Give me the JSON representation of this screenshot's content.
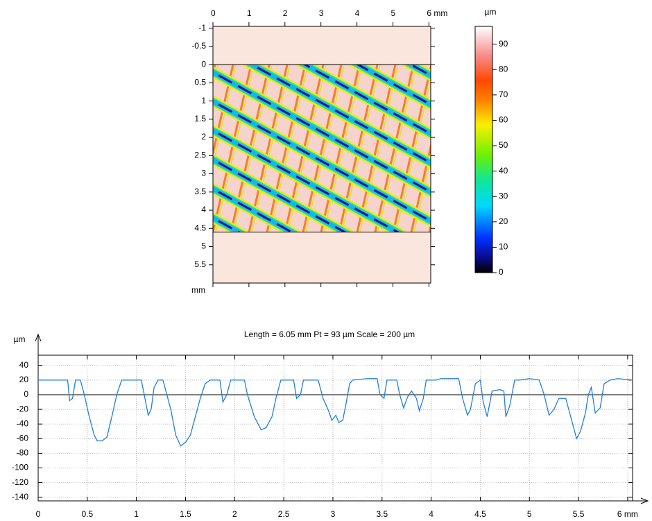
{
  "chart_data": [
    {
      "type": "heatmap",
      "xlim": [
        0,
        6.05
      ],
      "ylim": [
        -1.05,
        6.0
      ],
      "xticks": [
        0,
        1,
        2,
        3,
        4,
        5,
        {
          "value": 6,
          "label": "6 mm"
        }
      ],
      "yticks": [
        -1,
        -0.5,
        0,
        0.5,
        1,
        1.5,
        2,
        2.5,
        3,
        3.5,
        4,
        4.5,
        5,
        5.5
      ],
      "ylabel": "mm",
      "scan_ylim": [
        0,
        4.6
      ],
      "colorbar_label": "µm",
      "zlim": [
        0,
        97
      ],
      "zticks": [
        0,
        10,
        20,
        30,
        40,
        50,
        60,
        70,
        80,
        90
      ]
    },
    {
      "type": "line",
      "title": "Length = 6.05 mm  Pt = 93 µm  Scale = 200 µm",
      "ylabel": "µm",
      "xlim": [
        0,
        6.05
      ],
      "ylim": [
        -145,
        54
      ],
      "xticks": [
        0,
        0.5,
        1,
        1.5,
        2,
        2.5,
        3,
        3.5,
        4,
        4.5,
        5,
        5.5,
        {
          "value": 6,
          "label": "6 mm"
        }
      ],
      "yticks": [
        -140,
        -120,
        -100,
        -80,
        -60,
        -40,
        -20,
        0,
        20,
        40
      ],
      "grid": true,
      "color": "#1f7fd6",
      "x": [
        0,
        0.3,
        0.32,
        0.35,
        0.38,
        0.43,
        0.47,
        0.52,
        0.57,
        0.6,
        0.65,
        0.7,
        0.75,
        0.8,
        0.85,
        1.05,
        1.08,
        1.12,
        1.15,
        1.18,
        1.22,
        1.27,
        1.3,
        1.35,
        1.4,
        1.45,
        1.5,
        1.55,
        1.6,
        1.65,
        1.7,
        1.75,
        1.85,
        1.88,
        1.92,
        1.96,
        2.1,
        2.13,
        2.2,
        2.27,
        2.32,
        2.38,
        2.42,
        2.47,
        2.6,
        2.63,
        2.67,
        2.7,
        2.85,
        2.9,
        2.95,
        2.99,
        3.03,
        3.06,
        3.1,
        3.13,
        3.17,
        3.2,
        3.35,
        3.45,
        3.48,
        3.52,
        3.55,
        3.65,
        3.68,
        3.72,
        3.76,
        3.8,
        3.85,
        3.88,
        3.92,
        3.95,
        4.05,
        4.1,
        4.28,
        4.32,
        4.37,
        4.4,
        4.45,
        4.5,
        4.53,
        4.57,
        4.62,
        4.7,
        4.74,
        4.76,
        4.8,
        4.85,
        4.9,
        5.0,
        5.1,
        5.15,
        5.2,
        5.25,
        5.3,
        5.37,
        5.42,
        5.48,
        5.52,
        5.57,
        5.6,
        5.63,
        5.67,
        5.72,
        5.76,
        5.82,
        5.9,
        6.05
      ],
      "values": [
        20,
        20,
        -8,
        -5,
        20,
        20,
        0,
        -30,
        -55,
        -63,
        -63,
        -58,
        -30,
        0,
        20,
        20,
        0,
        -28,
        -20,
        10,
        20,
        20,
        5,
        -20,
        -55,
        -70,
        -65,
        -55,
        -30,
        -5,
        15,
        20,
        20,
        -10,
        0,
        20,
        20,
        0,
        -30,
        -48,
        -45,
        -30,
        -5,
        20,
        20,
        -5,
        0,
        20,
        20,
        -5,
        -20,
        -35,
        -28,
        -38,
        -35,
        -15,
        15,
        20,
        22,
        22,
        0,
        -5,
        20,
        20,
        0,
        -18,
        -3,
        5,
        -5,
        -22,
        -5,
        20,
        20,
        22,
        22,
        -5,
        -28,
        -20,
        15,
        20,
        -10,
        -30,
        5,
        7,
        5,
        -30,
        -15,
        20,
        20,
        22,
        20,
        0,
        -28,
        -20,
        -5,
        -5,
        -30,
        -60,
        -50,
        -25,
        0,
        10,
        -25,
        -18,
        15,
        20,
        22,
        20
      ]
    }
  ]
}
